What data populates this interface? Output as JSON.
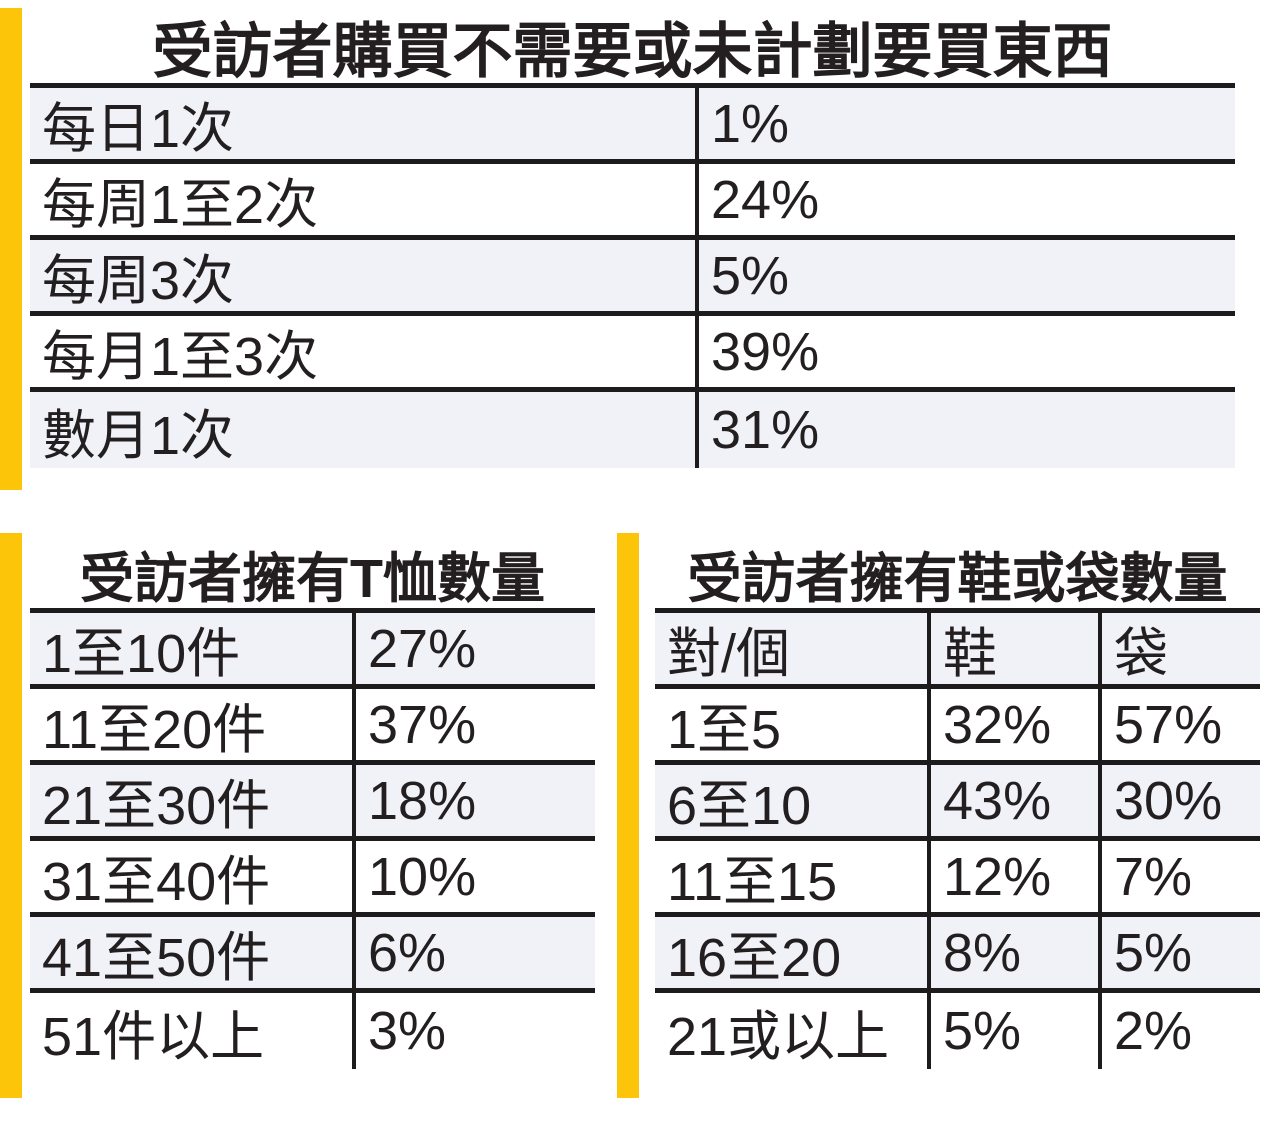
{
  "colors": {
    "accent": "#fcc50a",
    "shade": "#f0f2f7",
    "line": "#1d1b1b",
    "ink": "#231f20"
  },
  "chart_data": [
    {
      "type": "table",
      "title": "受訪者購買不需要或未計劃要買東西",
      "rows": [
        [
          "每日1次",
          "1%"
        ],
        [
          "每周1至2次",
          "24%"
        ],
        [
          "每周3次",
          "5%"
        ],
        [
          "每月1至3次",
          "39%"
        ],
        [
          "數月1次",
          "31%"
        ]
      ]
    },
    {
      "type": "table",
      "title": "受訪者擁有T恤數量",
      "rows": [
        [
          "1至10件",
          "27%"
        ],
        [
          "11至20件",
          "37%"
        ],
        [
          "21至30件",
          "18%"
        ],
        [
          "31至40件",
          "10%"
        ],
        [
          "41至50件",
          "6%"
        ],
        [
          "51件以上",
          "3%"
        ]
      ]
    },
    {
      "type": "table",
      "title": "受訪者擁有鞋或袋數量",
      "headers": [
        "對/個",
        "鞋",
        "袋"
      ],
      "rows": [
        [
          "1至5",
          "32%",
          "57%"
        ],
        [
          "6至10",
          "43%",
          "30%"
        ],
        [
          "11至15",
          "12%",
          "7%"
        ],
        [
          "16至20",
          "8%",
          "5%"
        ],
        [
          "21或以上",
          "5%",
          "2%"
        ]
      ]
    }
  ]
}
